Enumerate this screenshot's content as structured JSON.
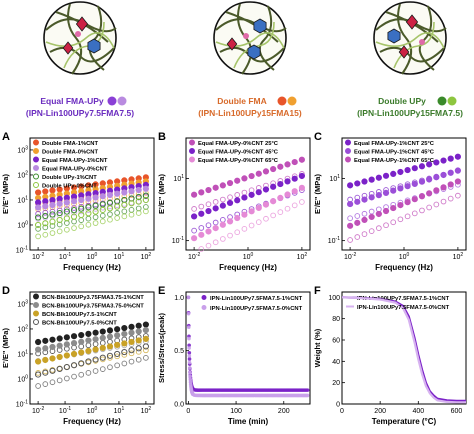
{
  "colors": {
    "purple": "#7b22c8",
    "light_purple": "#b98be0",
    "orange_red": "#e8552a",
    "orange": "#f0a030",
    "green_dark": "#3a8a2a",
    "green_light": "#8ec63f",
    "magenta": "#c050b8",
    "magenta_light": "#e58ad6",
    "black": "#222222",
    "gray": "#8c8c8c",
    "gold": "#c9a227",
    "network_line": "#5b6b3a"
  },
  "schematics": [
    {
      "label_line1": "Equal FMA-UPy",
      "label_line2": "(IPN-Lin100UPy7.5FMA7.5)",
      "text_color": "#6a2bbf",
      "dot1": "#8a3fd6",
      "dot2": "#b98be0"
    },
    {
      "label_line1": "Double FMA",
      "label_line2": "(IPN-Lin100UPy15FMA15)",
      "text_color": "#d86a2a",
      "dot1": "#e8552a",
      "dot2": "#f0a030"
    },
    {
      "label_line1": "Double UPy",
      "label_line2": "(IPN-Lin100UPy15FMA7.5)",
      "text_color": "#3a7a2a",
      "dot1": "#3a8a2a",
      "dot2": "#8ec63f"
    }
  ],
  "panels": {
    "A": {
      "letter": "A"
    },
    "B": {
      "letter": "B"
    },
    "C": {
      "letter": "C"
    },
    "D": {
      "letter": "D"
    },
    "E": {
      "letter": "E"
    },
    "F": {
      "letter": "F"
    }
  },
  "chart_data": [
    {
      "panel": "A",
      "type": "scatter",
      "xlabel": "Frequency (Hz)",
      "ylabel": "E'/E\" (MPa)",
      "xscale": "log",
      "yscale": "log",
      "xlim": [
        0.005,
        200
      ],
      "ylim": [
        0.1,
        3000
      ],
      "xticks": [
        "10^-2",
        "10^-1",
        "10^0",
        "10^1",
        "10^2"
      ],
      "yticks": [
        "10^-1",
        "10^0",
        "10^1",
        "10^2",
        "10^3"
      ],
      "series": [
        {
          "name": "Double FMA-1%CNT",
          "color": "#e8552a",
          "filled": true,
          "y0": 20,
          "y1": 80
        },
        {
          "name": "Double FMA-0%CNT",
          "color": "#f0a030",
          "filled": true,
          "y0": 12,
          "y1": 55
        },
        {
          "name": "Equal FMA-UPy-1%CNT",
          "color": "#7b22c8",
          "filled": true,
          "y0": 8,
          "y1": 40
        },
        {
          "name": "Equal FMA-UPy-0%CNT",
          "color": "#b98be0",
          "filled": true,
          "y0": 5,
          "y1": 28
        },
        {
          "name": "Double UPy-1%CNT",
          "color": "#3a8a2a",
          "filled": false,
          "y0": 2,
          "y1": 15
        },
        {
          "name": "Double UPy-0%CNT",
          "color": "#8ec63f",
          "filled": false,
          "y0": 1,
          "y1": 10
        }
      ]
    },
    {
      "panel": "B",
      "type": "scatter",
      "xlabel": "Frequency (Hz)",
      "ylabel": "E'/E\" (MPa)",
      "xscale": "log",
      "yscale": "log",
      "xlim": [
        0.005,
        200
      ],
      "ylim": [
        0.05,
        200
      ],
      "xticks": [
        "10^-2",
        "10^0",
        "10^2"
      ],
      "yticks": [
        "10^-1",
        "10^1"
      ],
      "series": [
        {
          "name": "Equal FMA-UPy-0%CNT 25°C",
          "color": "#c050b8",
          "filled": true,
          "y0": 3,
          "y1": 40
        },
        {
          "name": "Equal FMA-UPy-0%CNT 45°C",
          "color": "#7b22c8",
          "filled": true,
          "y0": 0.6,
          "y1": 12
        },
        {
          "name": "Equal FMA-UPy-0%CNT 65°C",
          "color": "#e58ad6",
          "filled": true,
          "y0": 0.12,
          "y1": 5
        }
      ]
    },
    {
      "panel": "C",
      "type": "scatter",
      "xlabel": "Frequency (Hz)",
      "ylabel": "E'/E\" (MPa)",
      "xscale": "log",
      "yscale": "log",
      "xlim": [
        0.005,
        200
      ],
      "ylim": [
        0.05,
        200
      ],
      "xticks": [
        "10^-2",
        "10^0",
        "10^2"
      ],
      "yticks": [
        "10^-1",
        "10^1"
      ],
      "series": [
        {
          "name": "Equal FMA-UPy-1%CNT 25°C",
          "color": "#7b22c8",
          "filled": true,
          "y0": 6,
          "y1": 50
        },
        {
          "name": "Equal FMA-UPy-1%CNT 45°C",
          "color": "#9b4fd8",
          "filled": true,
          "y0": 1.5,
          "y1": 18
        },
        {
          "name": "Equal FMA-UPy-1%CNT 65°C",
          "color": "#c050b8",
          "filled": true,
          "y0": 0.3,
          "y1": 8
        }
      ]
    },
    {
      "panel": "D",
      "type": "scatter",
      "xlabel": "Frequency (Hz)",
      "ylabel": "E'/E\" (MPa)",
      "xscale": "log",
      "yscale": "log",
      "xlim": [
        0.005,
        200
      ],
      "ylim": [
        0.1,
        3000
      ],
      "xticks": [
        "10^-2",
        "10^-1",
        "10^0",
        "10^1",
        "10^2"
      ],
      "yticks": [
        "10^-1",
        "10^0",
        "10^1",
        "10^2",
        "10^3"
      ],
      "series": [
        {
          "name": "BCN-Blk100UPy3.75FMA3.75-1%CNT",
          "color": "#222222",
          "filled": true,
          "y0": 30,
          "y1": 150
        },
        {
          "name": "BCN-Blk100UPy3.75FMA3.75-0%CNT",
          "color": "#8c8c8c",
          "filled": true,
          "y0": 15,
          "y1": 90
        },
        {
          "name": "BCN-Blk100UPy7.5-1%CNT",
          "color": "#c9a227",
          "filled": true,
          "y0": 5,
          "y1": 40
        },
        {
          "name": "BCN-Blk100UPy7.5-0%CNT",
          "color": "#555555",
          "filled": false,
          "y0": 1.5,
          "y1": 20
        }
      ]
    },
    {
      "panel": "E",
      "type": "scatter",
      "xlabel": "Time (min)",
      "ylabel": "Stress/Stress(peak)",
      "xlim": [
        -5,
        255
      ],
      "ylim": [
        0,
        1.05
      ],
      "xticks": [
        "0",
        "100",
        "200"
      ],
      "yticks": [
        "0.0",
        "0.5",
        "1.0"
      ],
      "series": [
        {
          "name": "IPN-Lin100UPy7.5FMA7.5-1%CNT",
          "color": "#7b22c8",
          "plateau": 0.13
        },
        {
          "name": "IPN-Lin100UPy7.5FMA7.5-0%CNT",
          "color": "#c9a0ea",
          "plateau": 0.08
        }
      ]
    },
    {
      "panel": "F",
      "type": "line",
      "xlabel": "Temperature (°C)",
      "ylabel": "Weight (%)",
      "xlim": [
        0,
        650
      ],
      "ylim": [
        0,
        105
      ],
      "xticks": [
        "0",
        "200",
        "400",
        "600"
      ],
      "yticks": [
        "0",
        "20",
        "40",
        "60",
        "80",
        "100"
      ],
      "series": [
        {
          "name": "IPN-Lin100UPy7.5FMA7.5-1%CNT",
          "color": "#7b22c8",
          "x": [
            0,
            100,
            200,
            280,
            320,
            350,
            380,
            400,
            420,
            440,
            460,
            480,
            500,
            550,
            600,
            650
          ],
          "y": [
            100,
            99.5,
            98.5,
            96,
            92,
            82,
            62,
            46,
            32,
            20,
            12,
            8,
            5,
            3.5,
            3,
            3
          ]
        },
        {
          "name": "IPN-Lin100UPy7.5FMA7.5-0%CNT",
          "color": "#d7b3f0",
          "x": [
            0,
            100,
            200,
            280,
            320,
            350,
            380,
            400,
            420,
            440,
            460,
            480,
            500,
            550,
            600,
            650
          ],
          "y": [
            100,
            99.3,
            98,
            95,
            90,
            79,
            58,
            42,
            28,
            17,
            10,
            6,
            3.5,
            2,
            1.5,
            1.5
          ]
        }
      ]
    }
  ]
}
